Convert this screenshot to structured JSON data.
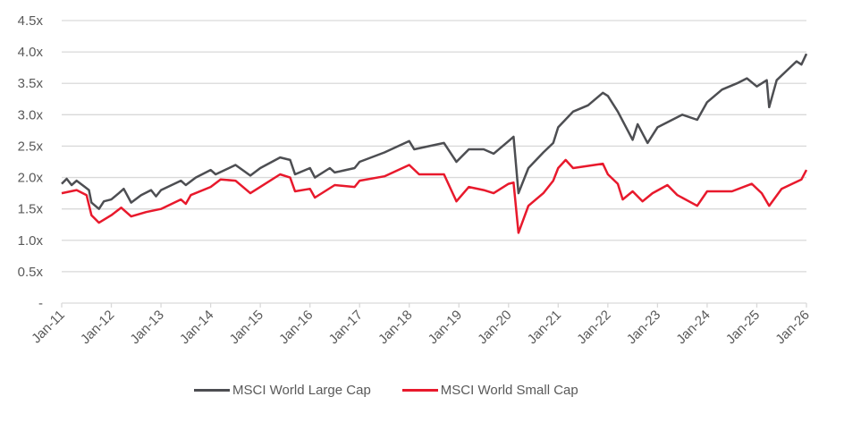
{
  "chart_data": {
    "type": "line",
    "title": "",
    "xlabel": "",
    "ylabel": "",
    "ylim": [
      0,
      4.5
    ],
    "xlim": [
      2011.0,
      2026.0
    ],
    "grid": true,
    "legend_position": "bottom",
    "y_ticks": [
      {
        "value": 0,
        "label": "-"
      },
      {
        "value": 0.5,
        "label": "0.5x"
      },
      {
        "value": 1.0,
        "label": "1.0x"
      },
      {
        "value": 1.5,
        "label": "1.5x"
      },
      {
        "value": 2.0,
        "label": "2.0x"
      },
      {
        "value": 2.5,
        "label": "2.5x"
      },
      {
        "value": 3.0,
        "label": "3.0x"
      },
      {
        "value": 3.5,
        "label": "3.5x"
      },
      {
        "value": 4.0,
        "label": "4.0x"
      },
      {
        "value": 4.5,
        "label": "4.5x"
      }
    ],
    "x_ticks": [
      {
        "value": 2011,
        "label": "Jan-11"
      },
      {
        "value": 2012,
        "label": "Jan-12"
      },
      {
        "value": 2013,
        "label": "Jan-13"
      },
      {
        "value": 2014,
        "label": "Jan-14"
      },
      {
        "value": 2015,
        "label": "Jan-15"
      },
      {
        "value": 2016,
        "label": "Jan-16"
      },
      {
        "value": 2017,
        "label": "Jan-17"
      },
      {
        "value": 2018,
        "label": "Jan-18"
      },
      {
        "value": 2019,
        "label": "Jan-19"
      },
      {
        "value": 2020,
        "label": "Jan-20"
      },
      {
        "value": 2021,
        "label": "Jan-21"
      },
      {
        "value": 2022,
        "label": "Jan-22"
      },
      {
        "value": 2023,
        "label": "Jan-23"
      },
      {
        "value": 2024,
        "label": "Jan-24"
      },
      {
        "value": 2025,
        "label": "Jan-25"
      },
      {
        "value": 2026,
        "label": "Jan-26"
      }
    ],
    "series": [
      {
        "name": "MSCI World Large Cap",
        "color": "#4d4e52",
        "points": [
          [
            2011.0,
            1.9
          ],
          [
            2011.1,
            1.98
          ],
          [
            2011.2,
            1.88
          ],
          [
            2011.3,
            1.95
          ],
          [
            2011.45,
            1.86
          ],
          [
            2011.55,
            1.8
          ],
          [
            2011.6,
            1.6
          ],
          [
            2011.75,
            1.5
          ],
          [
            2011.85,
            1.62
          ],
          [
            2012.0,
            1.65
          ],
          [
            2012.15,
            1.75
          ],
          [
            2012.25,
            1.82
          ],
          [
            2012.4,
            1.6
          ],
          [
            2012.6,
            1.72
          ],
          [
            2012.8,
            1.8
          ],
          [
            2012.9,
            1.7
          ],
          [
            2013.0,
            1.8
          ],
          [
            2013.4,
            1.95
          ],
          [
            2013.5,
            1.88
          ],
          [
            2013.7,
            2.0
          ],
          [
            2014.0,
            2.12
          ],
          [
            2014.1,
            2.05
          ],
          [
            2014.5,
            2.2
          ],
          [
            2014.8,
            2.03
          ],
          [
            2015.0,
            2.15
          ],
          [
            2015.4,
            2.32
          ],
          [
            2015.6,
            2.28
          ],
          [
            2015.7,
            2.05
          ],
          [
            2016.0,
            2.15
          ],
          [
            2016.1,
            2.0
          ],
          [
            2016.4,
            2.15
          ],
          [
            2016.5,
            2.08
          ],
          [
            2016.9,
            2.15
          ],
          [
            2017.0,
            2.25
          ],
          [
            2017.5,
            2.4
          ],
          [
            2018.0,
            2.58
          ],
          [
            2018.1,
            2.45
          ],
          [
            2018.7,
            2.55
          ],
          [
            2018.95,
            2.25
          ],
          [
            2019.2,
            2.45
          ],
          [
            2019.5,
            2.45
          ],
          [
            2019.7,
            2.38
          ],
          [
            2020.0,
            2.58
          ],
          [
            2020.1,
            2.65
          ],
          [
            2020.2,
            1.75
          ],
          [
            2020.4,
            2.15
          ],
          [
            2020.7,
            2.4
          ],
          [
            2020.9,
            2.55
          ],
          [
            2021.0,
            2.8
          ],
          [
            2021.3,
            3.05
          ],
          [
            2021.6,
            3.15
          ],
          [
            2021.9,
            3.35
          ],
          [
            2022.0,
            3.3
          ],
          [
            2022.2,
            3.05
          ],
          [
            2022.4,
            2.75
          ],
          [
            2022.5,
            2.6
          ],
          [
            2022.6,
            2.85
          ],
          [
            2022.8,
            2.55
          ],
          [
            2023.0,
            2.8
          ],
          [
            2023.5,
            3.0
          ],
          [
            2023.8,
            2.92
          ],
          [
            2024.0,
            3.2
          ],
          [
            2024.3,
            3.4
          ],
          [
            2024.6,
            3.5
          ],
          [
            2024.8,
            3.58
          ],
          [
            2025.0,
            3.45
          ],
          [
            2025.2,
            3.55
          ],
          [
            2025.25,
            3.12
          ],
          [
            2025.4,
            3.55
          ],
          [
            2025.8,
            3.85
          ],
          [
            2025.9,
            3.8
          ],
          [
            2026.0,
            3.97
          ]
        ]
      },
      {
        "name": "MSCI World Small Cap",
        "color": "#e8192c",
        "points": [
          [
            2011.0,
            1.75
          ],
          [
            2011.3,
            1.8
          ],
          [
            2011.5,
            1.72
          ],
          [
            2011.6,
            1.4
          ],
          [
            2011.75,
            1.28
          ],
          [
            2012.0,
            1.4
          ],
          [
            2012.2,
            1.52
          ],
          [
            2012.4,
            1.38
          ],
          [
            2012.7,
            1.45
          ],
          [
            2013.0,
            1.5
          ],
          [
            2013.4,
            1.65
          ],
          [
            2013.5,
            1.58
          ],
          [
            2013.6,
            1.72
          ],
          [
            2014.0,
            1.85
          ],
          [
            2014.2,
            1.97
          ],
          [
            2014.5,
            1.95
          ],
          [
            2014.8,
            1.75
          ],
          [
            2015.0,
            1.85
          ],
          [
            2015.4,
            2.05
          ],
          [
            2015.6,
            2.0
          ],
          [
            2015.7,
            1.78
          ],
          [
            2016.0,
            1.82
          ],
          [
            2016.1,
            1.68
          ],
          [
            2016.5,
            1.88
          ],
          [
            2016.9,
            1.85
          ],
          [
            2017.0,
            1.95
          ],
          [
            2017.5,
            2.02
          ],
          [
            2018.0,
            2.2
          ],
          [
            2018.2,
            2.05
          ],
          [
            2018.7,
            2.05
          ],
          [
            2018.95,
            1.62
          ],
          [
            2019.2,
            1.85
          ],
          [
            2019.5,
            1.8
          ],
          [
            2019.7,
            1.75
          ],
          [
            2020.0,
            1.9
          ],
          [
            2020.1,
            1.92
          ],
          [
            2020.2,
            1.12
          ],
          [
            2020.4,
            1.55
          ],
          [
            2020.7,
            1.75
          ],
          [
            2020.9,
            1.95
          ],
          [
            2021.0,
            2.15
          ],
          [
            2021.15,
            2.28
          ],
          [
            2021.3,
            2.15
          ],
          [
            2021.9,
            2.22
          ],
          [
            2022.0,
            2.05
          ],
          [
            2022.2,
            1.9
          ],
          [
            2022.3,
            1.65
          ],
          [
            2022.5,
            1.78
          ],
          [
            2022.7,
            1.62
          ],
          [
            2022.9,
            1.75
          ],
          [
            2023.2,
            1.88
          ],
          [
            2023.4,
            1.72
          ],
          [
            2023.8,
            1.55
          ],
          [
            2024.0,
            1.78
          ],
          [
            2024.5,
            1.78
          ],
          [
            2024.9,
            1.9
          ],
          [
            2025.1,
            1.75
          ],
          [
            2025.25,
            1.55
          ],
          [
            2025.5,
            1.82
          ],
          [
            2025.9,
            1.97
          ],
          [
            2026.0,
            2.12
          ]
        ]
      }
    ]
  }
}
